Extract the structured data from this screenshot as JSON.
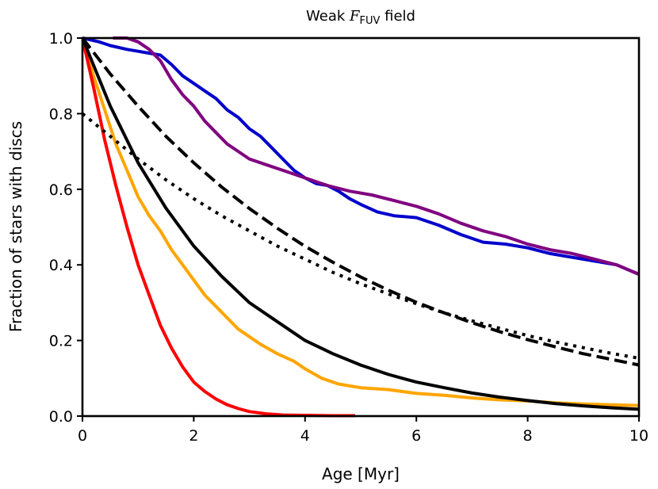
{
  "chart_data": {
    "type": "line",
    "title": {
      "prefix": "Weak",
      "symbol": "F",
      "subscript": "FUV",
      "suffix": "field"
    },
    "xlabel": "Age [Myr]",
    "ylabel": "Fraction of stars with discs",
    "xlim": [
      0,
      10
    ],
    "ylim": [
      0,
      1.0
    ],
    "xticks": [
      0,
      2,
      4,
      6,
      8,
      10
    ],
    "xtick_labels": [
      "0",
      "2",
      "4",
      "6",
      "8",
      "10"
    ],
    "yticks": [
      0.0,
      0.2,
      0.4,
      0.6,
      0.8,
      1.0
    ],
    "ytick_labels": [
      "0.0",
      "0.2",
      "0.4",
      "0.6",
      "0.8",
      "1.0"
    ],
    "grid": false,
    "legend": "none",
    "series": [
      {
        "color": "#0000cc",
        "style": "solid",
        "x": [
          0,
          0.3,
          0.5,
          0.8,
          1.0,
          1.2,
          1.4,
          1.6,
          1.8,
          2.0,
          2.2,
          2.4,
          2.6,
          2.8,
          3.0,
          3.2,
          3.4,
          3.6,
          3.8,
          4.0,
          4.2,
          4.4,
          4.6,
          4.8,
          5.0,
          5.3,
          5.6,
          6.0,
          6.4,
          6.8,
          7.2,
          7.6,
          8.0,
          8.4,
          8.8,
          9.2,
          9.6,
          10.0
        ],
        "y": [
          1.0,
          0.99,
          0.98,
          0.97,
          0.965,
          0.96,
          0.955,
          0.93,
          0.9,
          0.88,
          0.86,
          0.84,
          0.81,
          0.79,
          0.76,
          0.74,
          0.71,
          0.68,
          0.65,
          0.63,
          0.615,
          0.61,
          0.595,
          0.575,
          0.56,
          0.54,
          0.53,
          0.525,
          0.505,
          0.48,
          0.46,
          0.455,
          0.445,
          0.43,
          0.42,
          0.41,
          0.4,
          0.375
        ]
      },
      {
        "color": "#800080",
        "style": "solid",
        "x": [
          0.55,
          0.8,
          1.0,
          1.2,
          1.4,
          1.6,
          1.8,
          2.0,
          2.2,
          2.4,
          2.6,
          2.8,
          3.0,
          3.3,
          3.6,
          4.0,
          4.4,
          4.8,
          5.2,
          5.6,
          6.0,
          6.4,
          6.8,
          7.2,
          7.6,
          8.0,
          8.4,
          8.8,
          9.2,
          9.6,
          10.0
        ],
        "y": [
          1.0,
          1.0,
          0.99,
          0.97,
          0.94,
          0.89,
          0.85,
          0.82,
          0.78,
          0.75,
          0.72,
          0.7,
          0.68,
          0.665,
          0.65,
          0.63,
          0.61,
          0.595,
          0.585,
          0.57,
          0.555,
          0.535,
          0.51,
          0.49,
          0.475,
          0.455,
          0.44,
          0.43,
          0.415,
          0.4,
          0.375
        ]
      },
      {
        "color": "#ffa500",
        "style": "solid",
        "x": [
          0,
          0.2,
          0.4,
          0.6,
          0.8,
          1.0,
          1.2,
          1.4,
          1.6,
          1.8,
          2.0,
          2.2,
          2.4,
          2.6,
          2.8,
          3.0,
          3.2,
          3.5,
          3.8,
          4.0,
          4.3,
          4.6,
          5.0,
          5.5,
          6.0,
          6.5,
          7.0,
          7.5,
          8.0,
          8.5,
          9.0,
          9.5,
          10.0
        ],
        "y": [
          1.0,
          0.9,
          0.81,
          0.72,
          0.65,
          0.58,
          0.53,
          0.49,
          0.44,
          0.4,
          0.36,
          0.32,
          0.29,
          0.26,
          0.23,
          0.21,
          0.19,
          0.165,
          0.145,
          0.125,
          0.1,
          0.085,
          0.075,
          0.07,
          0.06,
          0.055,
          0.048,
          0.043,
          0.04,
          0.035,
          0.032,
          0.03,
          0.028
        ]
      },
      {
        "color": "#ff0000",
        "style": "solid",
        "x": [
          0,
          0.2,
          0.4,
          0.6,
          0.8,
          1.0,
          1.2,
          1.4,
          1.6,
          1.8,
          2.0,
          2.2,
          2.4,
          2.6,
          2.8,
          3.0,
          3.3,
          3.6,
          4.0,
          4.5,
          4.9
        ],
        "y": [
          1.0,
          0.87,
          0.73,
          0.61,
          0.5,
          0.4,
          0.32,
          0.24,
          0.18,
          0.13,
          0.09,
          0.065,
          0.045,
          0.03,
          0.02,
          0.012,
          0.006,
          0.003,
          0.002,
          0.001,
          0.001
        ]
      },
      {
        "color": "#000000",
        "style": "solid",
        "x": [
          0,
          0.5,
          1.0,
          1.5,
          2.0,
          2.5,
          3.0,
          3.5,
          4.0,
          4.5,
          5.0,
          5.5,
          6.0,
          6.5,
          7.0,
          7.5,
          8.0,
          8.5,
          9.0,
          9.5,
          10.0
        ],
        "y": [
          1.0,
          0.82,
          0.67,
          0.55,
          0.45,
          0.37,
          0.3,
          0.25,
          0.2,
          0.165,
          0.135,
          0.11,
          0.09,
          0.075,
          0.061,
          0.05,
          0.041,
          0.033,
          0.027,
          0.022,
          0.018
        ]
      },
      {
        "color": "#000000",
        "style": "dashed",
        "x": [
          0,
          0.5,
          1.0,
          1.5,
          2.0,
          2.5,
          3.0,
          3.5,
          4.0,
          4.5,
          5.0,
          5.5,
          6.0,
          6.5,
          7.0,
          7.5,
          8.0,
          8.5,
          9.0,
          9.5,
          10.0
        ],
        "y": [
          1.0,
          0.905,
          0.82,
          0.74,
          0.67,
          0.606,
          0.549,
          0.497,
          0.449,
          0.407,
          0.368,
          0.333,
          0.301,
          0.273,
          0.247,
          0.223,
          0.202,
          0.183,
          0.165,
          0.15,
          0.135
        ]
      },
      {
        "color": "#000000",
        "style": "dotted",
        "x": [
          0,
          0.5,
          1.0,
          1.5,
          2.0,
          2.5,
          3.0,
          3.5,
          4.0,
          4.5,
          5.0,
          5.5,
          6.0,
          6.5,
          7.0,
          7.5,
          8.0,
          8.5,
          9.0,
          9.5,
          10.0
        ],
        "y": [
          0.8,
          0.74,
          0.68,
          0.625,
          0.575,
          0.53,
          0.49,
          0.45,
          0.415,
          0.38,
          0.35,
          0.323,
          0.297,
          0.273,
          0.252,
          0.232,
          0.213,
          0.196,
          0.181,
          0.166,
          0.153
        ]
      }
    ]
  }
}
